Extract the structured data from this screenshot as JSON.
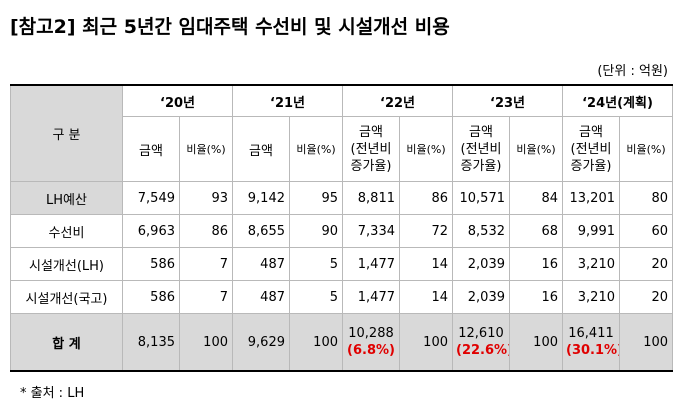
{
  "title": "[참고2] 최근 5년간 임대주택 수선비 및 시설개선 비용",
  "unit": "(단위 : 억원)",
  "header": {
    "category": "구 분",
    "years": [
      "‘20년",
      "‘21년",
      "‘22년",
      "‘23년",
      "‘24년(계획)"
    ],
    "amount": "금액",
    "ratio": "비율(%)",
    "amount_growth": [
      "금액",
      "(전년비",
      "증가율)"
    ]
  },
  "rows": [
    {
      "label": "LH예산",
      "values": [
        "7,549",
        "93",
        "9,142",
        "95",
        "8,811",
        "86",
        "10,571",
        "84",
        "13,201",
        "80"
      ]
    },
    {
      "label": "수선비",
      "values": [
        "6,963",
        "86",
        "8,655",
        "90",
        "7,334",
        "72",
        "8,532",
        "68",
        "9,991",
        "60"
      ]
    },
    {
      "label": "시설개선(LH)",
      "values": [
        "586",
        "7",
        "487",
        "5",
        "1,477",
        "14",
        "2,039",
        "16",
        "3,210",
        "20"
      ]
    },
    {
      "label": "시설개선(국고)",
      "values": [
        "586",
        "7",
        "487",
        "5",
        "1,477",
        "14",
        "2,039",
        "16",
        "3,210",
        "20"
      ]
    }
  ],
  "total": {
    "label": "합 계",
    "values": [
      "8,135",
      "100",
      "9,629",
      "100"
    ],
    "y22": {
      "amount": "10,288",
      "growth": "(6.8%)",
      "ratio": "100"
    },
    "y23": {
      "amount": "12,610",
      "growth": "(22.6%)",
      "ratio": "100"
    },
    "y24": {
      "amount": "16,411",
      "growth": "(30.1%)",
      "ratio": "100"
    }
  },
  "note": "* 출처 : LH"
}
